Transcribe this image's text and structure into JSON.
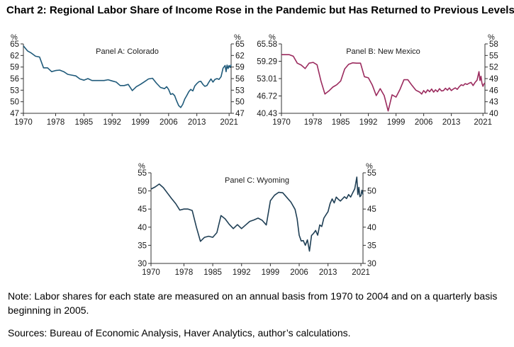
{
  "title": "Chart 2: Regional Labor Share of Income Rose in the Pandemic but Has Returned to Previous Levels",
  "note": "Note: Labor shares for each state are measured on an annual basis from 1970 to 2004 and on a quarterly basis beginning in 2005.",
  "sources": "Sources: Bureau of Economic Analysis, Haver Analytics, author’s calculations.",
  "chart_data": [
    {
      "type": "line",
      "title": "Panel A: Colorado",
      "unit": "%",
      "color": "#1f5a7a",
      "xlim": [
        1970,
        2021.5
      ],
      "ylim": [
        47,
        65
      ],
      "yticks": [
        47,
        50,
        53,
        56,
        59,
        62,
        65
      ],
      "xticks": [
        1970,
        1978,
        1985,
        1992,
        1999,
        2006,
        2013,
        2021
      ],
      "x": [
        1970,
        1971,
        1972,
        1973,
        1974,
        1975,
        1976,
        1977,
        1978,
        1979,
        1980,
        1981,
        1982,
        1983,
        1984,
        1985,
        1986,
        1987,
        1988,
        1989,
        1990,
        1991,
        1992,
        1993,
        1994,
        1995,
        1996,
        1997,
        1998,
        1999,
        2000,
        2001,
        2002,
        2003,
        2004,
        2005,
        2005.5,
        2006,
        2006.5,
        2007,
        2007.5,
        2008,
        2008.5,
        2009,
        2009.5,
        2010,
        2010.5,
        2011,
        2011.5,
        2012,
        2012.5,
        2013,
        2013.5,
        2014,
        2014.5,
        2015,
        2015.5,
        2016,
        2016.5,
        2017,
        2017.5,
        2018,
        2018.5,
        2019,
        2019.5,
        2020,
        2020.25,
        2020.5,
        2020.75,
        2021,
        2021.25,
        2021.5
      ],
      "y": [
        64.5,
        63.2,
        62.6,
        61.8,
        61.6,
        58.8,
        58.8,
        57.8,
        58.1,
        58.2,
        57.8,
        57.1,
        56.9,
        56.7,
        55.9,
        55.6,
        56.0,
        55.5,
        55.5,
        55.5,
        55.5,
        55.7,
        55.4,
        55.1,
        54.2,
        54.2,
        54.5,
        52.9,
        53.9,
        54.5,
        55.2,
        55.9,
        56.1,
        54.8,
        53.7,
        53.4,
        53.9,
        53.2,
        51.9,
        52.1,
        51.6,
        50.2,
        49.0,
        48.5,
        49.3,
        50.7,
        51.6,
        52.6,
        53.2,
        52.8,
        54.1,
        54.7,
        55.2,
        55.3,
        54.5,
        54.0,
        54.2,
        55.1,
        55.9,
        55.1,
        55.8,
        56.0,
        55.8,
        56.5,
        58.7,
        59.4,
        57.8,
        59.5,
        58.6,
        59.4,
        58.9,
        59.6
      ]
    },
    {
      "type": "line",
      "title": "Panel B: New Mexico",
      "unit": "%",
      "color": "#9b2b5e",
      "xlim": [
        1970,
        2021.5
      ],
      "ylim": [
        40,
        58
      ],
      "ylim_left": [
        40.43,
        65.58
      ],
      "yticks": [
        40,
        43,
        46,
        49,
        52,
        55,
        58
      ],
      "yticks_left": [
        40.43,
        46.72,
        53.01,
        59.29,
        65.58
      ],
      "xticks": [
        1970,
        1978,
        1985,
        1992,
        1999,
        2006,
        2013,
        2021
      ],
      "x": [
        1970,
        1971,
        1972,
        1973,
        1974,
        1975,
        1976,
        1977,
        1978,
        1979,
        1980,
        1981,
        1982,
        1983,
        1984,
        1985,
        1986,
        1987,
        1988,
        1989,
        1990,
        1991,
        1992,
        1993,
        1994,
        1995,
        1996,
        1997,
        1998,
        1999,
        2000,
        2001,
        2002,
        2003,
        2004,
        2005,
        2005.5,
        2006,
        2006.5,
        2007,
        2007.5,
        2008,
        2008.5,
        2009,
        2009.5,
        2010,
        2010.5,
        2011,
        2011.5,
        2012,
        2012.5,
        2013,
        2013.5,
        2014,
        2014.5,
        2015,
        2015.5,
        2016,
        2016.5,
        2017,
        2017.5,
        2018,
        2018.5,
        2019,
        2019.5,
        2020,
        2020.25,
        2020.5,
        2020.75,
        2021,
        2021.25,
        2021.5
      ],
      "y": [
        55.2,
        55.2,
        55.2,
        54.8,
        53.0,
        52.5,
        51.6,
        53.0,
        53.2,
        52.6,
        48.4,
        45.0,
        45.8,
        46.8,
        47.4,
        48.4,
        51.5,
        52.7,
        53.1,
        53.0,
        53.0,
        49.5,
        49.2,
        47.3,
        44.6,
        46.4,
        44.6,
        40.6,
        44.8,
        44.2,
        46.2,
        48.7,
        48.7,
        47.3,
        46.0,
        45.5,
        45.0,
        45.9,
        45.3,
        46.1,
        45.6,
        46.3,
        45.5,
        46.1,
        45.6,
        46.4,
        45.8,
        45.9,
        46.5,
        46.0,
        46.6,
        45.9,
        46.3,
        46.6,
        46.2,
        46.9,
        47.4,
        47.2,
        47.7,
        47.5,
        47.8,
        48.0,
        47.2,
        48.0,
        48.6,
        50.8,
        48.5,
        49.6,
        47.8,
        47.0,
        47.6,
        47.9
      ]
    },
    {
      "type": "line",
      "title": "Panel C: Wyoming",
      "unit": "%",
      "color": "#1f3f55",
      "xlim": [
        1970,
        2021.5
      ],
      "ylim": [
        30,
        55
      ],
      "yticks": [
        30,
        35,
        40,
        45,
        50,
        55
      ],
      "xticks": [
        1970,
        1978,
        1985,
        1992,
        1999,
        2006,
        2013,
        2021
      ],
      "x": [
        1970,
        1971,
        1972,
        1973,
        1974,
        1975,
        1976,
        1977,
        1978,
        1979,
        1980,
        1981,
        1982,
        1983,
        1984,
        1985,
        1986,
        1987,
        1988,
        1989,
        1990,
        1991,
        1992,
        1993,
        1994,
        1995,
        1996,
        1997,
        1998,
        1999,
        2000,
        2001,
        2002,
        2003,
        2004,
        2005,
        2005.5,
        2006,
        2006.5,
        2007,
        2007.5,
        2008,
        2008.5,
        2009,
        2009.5,
        2010,
        2010.5,
        2011,
        2011.5,
        2012,
        2012.5,
        2013,
        2013.5,
        2014,
        2014.5,
        2015,
        2015.5,
        2016,
        2016.5,
        2017,
        2017.5,
        2018,
        2018.5,
        2019,
        2019.5,
        2020,
        2020.25,
        2020.5,
        2020.75,
        2021,
        2021.25,
        2021.5
      ],
      "y": [
        50.5,
        51.1,
        51.9,
        50.9,
        49.4,
        47.9,
        46.5,
        44.7,
        45.0,
        45.0,
        44.6,
        40.1,
        36.1,
        37.2,
        37.5,
        37.2,
        38.5,
        43.2,
        42.3,
        40.8,
        39.6,
        40.7,
        39.6,
        40.6,
        41.6,
        42.0,
        42.5,
        41.9,
        40.6,
        47.3,
        48.8,
        49.6,
        49.5,
        48.2,
        46.9,
        44.9,
        42.3,
        37.8,
        36.2,
        36.3,
        35.0,
        36.5,
        33.4,
        37.7,
        38.3,
        39.1,
        37.8,
        40.6,
        40.2,
        42.5,
        43.4,
        44.3,
        46.5,
        47.8,
        46.7,
        48.3,
        47.7,
        47.2,
        47.8,
        48.4,
        47.9,
        49.0,
        48.3,
        49.5,
        50.6,
        53.8,
        49.0,
        51.0,
        48.4,
        48.7,
        50.2,
        49.0
      ]
    }
  ]
}
